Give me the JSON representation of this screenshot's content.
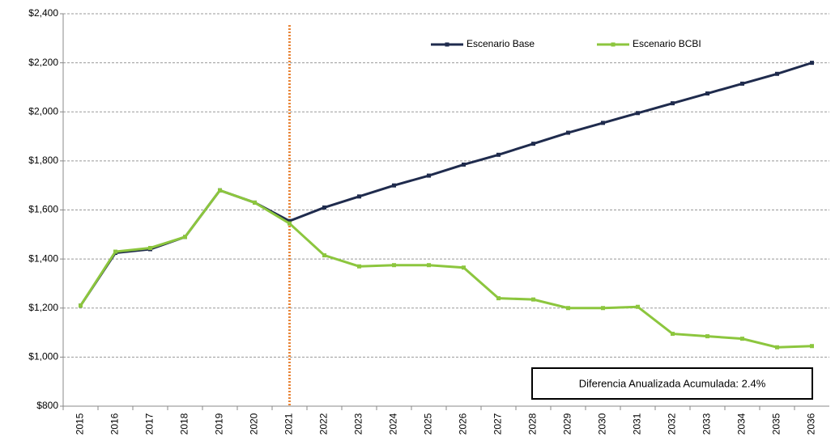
{
  "chart_data": {
    "type": "line",
    "categories": [
      "2015",
      "2016",
      "2017",
      "2018",
      "2019",
      "2020",
      "2021",
      "2022",
      "2023",
      "2024",
      "2025",
      "2026",
      "2027",
      "2028",
      "2029",
      "2030",
      "2031",
      "2032",
      "2033",
      "2034",
      "2035",
      "2036"
    ],
    "series": [
      {
        "name": "Escenario Base",
        "color": "#1f2b4d",
        "values": [
          1210,
          1425,
          1440,
          1490,
          1680,
          1630,
          1555,
          1610,
          1655,
          1700,
          1740,
          1785,
          1825,
          1870,
          1915,
          1955,
          1995,
          2035,
          2075,
          2115,
          2155,
          2200
        ]
      },
      {
        "name": "Escenario BCBI",
        "color": "#8cc63e",
        "values": [
          1210,
          1430,
          1445,
          1490,
          1680,
          1630,
          1545,
          1415,
          1370,
          1375,
          1375,
          1365,
          1240,
          1235,
          1200,
          1200,
          1205,
          1095,
          1085,
          1075,
          1040,
          1045
        ]
      }
    ],
    "ylim": [
      800,
      2400
    ],
    "yticks": [
      {
        "value": 800,
        "label": "$800"
      },
      {
        "value": 1000,
        "label": "$1,000"
      },
      {
        "value": 1200,
        "label": "$1,200"
      },
      {
        "value": 1400,
        "label": "$1,400"
      },
      {
        "value": 1600,
        "label": "$1,600"
      },
      {
        "value": 1800,
        "label": "$1,800"
      },
      {
        "value": 2000,
        "label": "$2,000"
      },
      {
        "value": 2200,
        "label": "$2,200"
      },
      {
        "value": 2400,
        "label": "$2,400"
      }
    ],
    "grid": true,
    "legend": "top-right",
    "vline": {
      "x": "2021",
      "color": "#e8863a"
    },
    "annotation": "Diferencia Anualizada Acumulada:  2.4%"
  }
}
